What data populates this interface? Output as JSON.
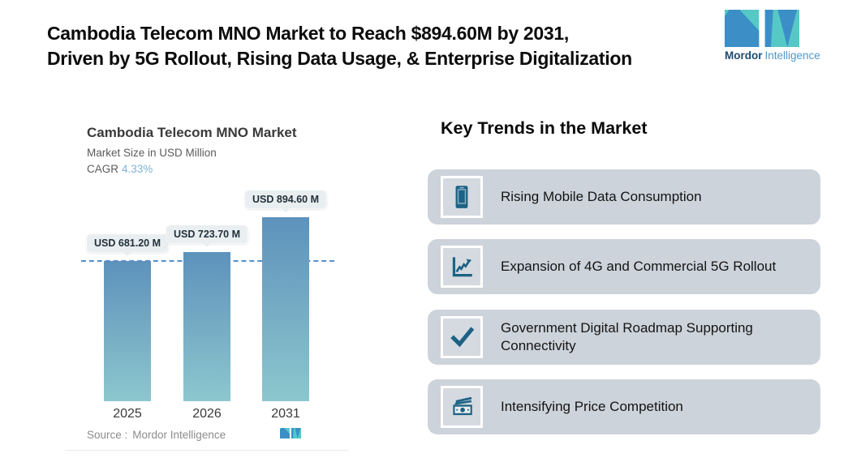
{
  "header": {
    "title_line1": "Cambodia Telecom MNO Market to Reach $894.60M by 2031,",
    "title_line2": "Driven by 5G Rollout, Rising Data Usage, & Enterprise Digitalization"
  },
  "brand": {
    "bold": "Mordor",
    "light": "Intelligence"
  },
  "chart": {
    "title": "Cambodia Telecom MNO Market",
    "subtitle": "Market Size in USD Million",
    "cagr_label": "CAGR",
    "cagr_value": "4.33%",
    "source_label": "Source :",
    "source_value": "Mordor Intelligence"
  },
  "chart_data": {
    "type": "bar",
    "title": "Cambodia Telecom MNO Market",
    "subtitle": "Market Size in USD Million",
    "cagr": "4.33%",
    "unit": "USD Million",
    "categories": [
      "2025",
      "2026",
      "2031"
    ],
    "values": [
      681.2,
      723.7,
      894.6
    ],
    "bar_labels": [
      "USD 681.20 M",
      "USD 723.70 M",
      "USD 894.60 M"
    ],
    "ylim": [
      0,
      900
    ],
    "reference_line": 681.2,
    "grid": false,
    "legend": false,
    "source": "Mordor Intelligence"
  },
  "trends": {
    "heading": "Key Trends in the Market",
    "items": [
      {
        "icon": "smartphone-icon",
        "label": "Rising Mobile Data Consumption"
      },
      {
        "icon": "line-chart-icon",
        "label": "Expansion of 4G and Commercial 5G Rollout"
      },
      {
        "icon": "checkmark-icon",
        "label": "Government Digital Roadmap Supporting Connectivity"
      },
      {
        "icon": "banknotes-icon",
        "label": "Intensifying Price Competition"
      }
    ]
  },
  "colors": {
    "logo_teal": "#56c9c6",
    "logo_blue": "#3b8fc6",
    "icon_teal": "#1d6285",
    "card_bg": "#cdd3da",
    "bar_top": "#5d92bc",
    "bar_bottom": "#8cc7ce",
    "dashed_line": "#4583c4",
    "cagr_blue": "#7fb3d5",
    "bubble_bg": "#e9eef1"
  }
}
